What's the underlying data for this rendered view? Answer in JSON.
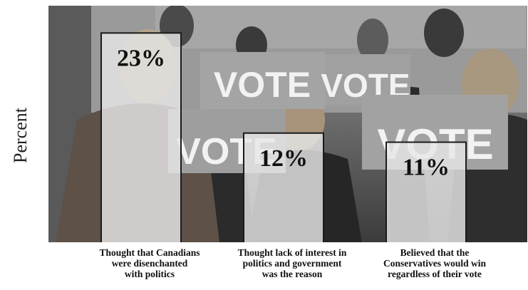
{
  "chart_data": {
    "type": "bar",
    "title": "",
    "xlabel": "",
    "ylabel": "Percent",
    "categories": [
      "Thought that Canadians\nwere disenchanted\nwith politics",
      "Thought lack of interest in\npolitics and government\nwas the reason",
      "Believed that the\nConservatives would win\nregardless of their vote"
    ],
    "values": [
      23,
      12,
      11
    ],
    "value_labels": [
      "23%",
      "12%",
      "11%"
    ],
    "ylim": [
      0,
      26
    ],
    "grid": false,
    "legend": "none",
    "background": "photograph of people holding VOTE signs",
    "bar_color": "#e6e6e6",
    "bar_border_color": "#1a1a1a"
  },
  "background_signs": [
    "VOTE",
    "VOTE",
    "VOTE",
    "VOTE"
  ]
}
